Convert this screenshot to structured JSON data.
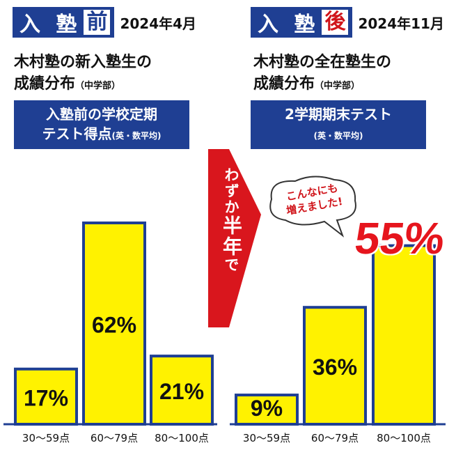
{
  "before": {
    "tag_main": "入 塾 ",
    "tag_emph": "前",
    "date": "2024年4月",
    "title_line1": "木村塾の新入塾生の",
    "title_line2": "成績分布",
    "title_note": "（中学部）",
    "sub_line1": "入塾前の学校定期",
    "sub_line2": "テスト得点",
    "sub_note": "(英・数平均)"
  },
  "after": {
    "tag_main": "入 塾 ",
    "tag_emph": "後",
    "date": "2024年11月",
    "title_line1": "木村塾の全在塾生の",
    "title_line2": "成績分布",
    "title_note": "（中学部）",
    "sub_line1": "2学期期末テスト",
    "sub_note": "(英・数平均)"
  },
  "arrow": {
    "text_small": "わずか",
    "text_big": "半年",
    "text_end": "で"
  },
  "bubble": {
    "line1": "こんなにも",
    "line2": "増えました!"
  },
  "highlight": "55%",
  "colors": {
    "blue": "#1f3f93",
    "yellow": "#fff200",
    "red": "#e6151d",
    "arrow_red": "#d9161d"
  },
  "chart_data": [
    {
      "type": "bar",
      "categories": [
        "30～59点",
        "60～79点",
        "80～100点"
      ],
      "values": [
        17,
        62,
        21
      ],
      "labels": [
        "17%",
        "62%",
        "21%"
      ],
      "ylim": [
        0,
        62
      ]
    },
    {
      "type": "bar",
      "categories": [
        "30～59点",
        "60～79点",
        "80～100点"
      ],
      "values": [
        9,
        36,
        55
      ],
      "labels": [
        "9%",
        "36%",
        ""
      ],
      "ylim": [
        0,
        62
      ]
    }
  ]
}
